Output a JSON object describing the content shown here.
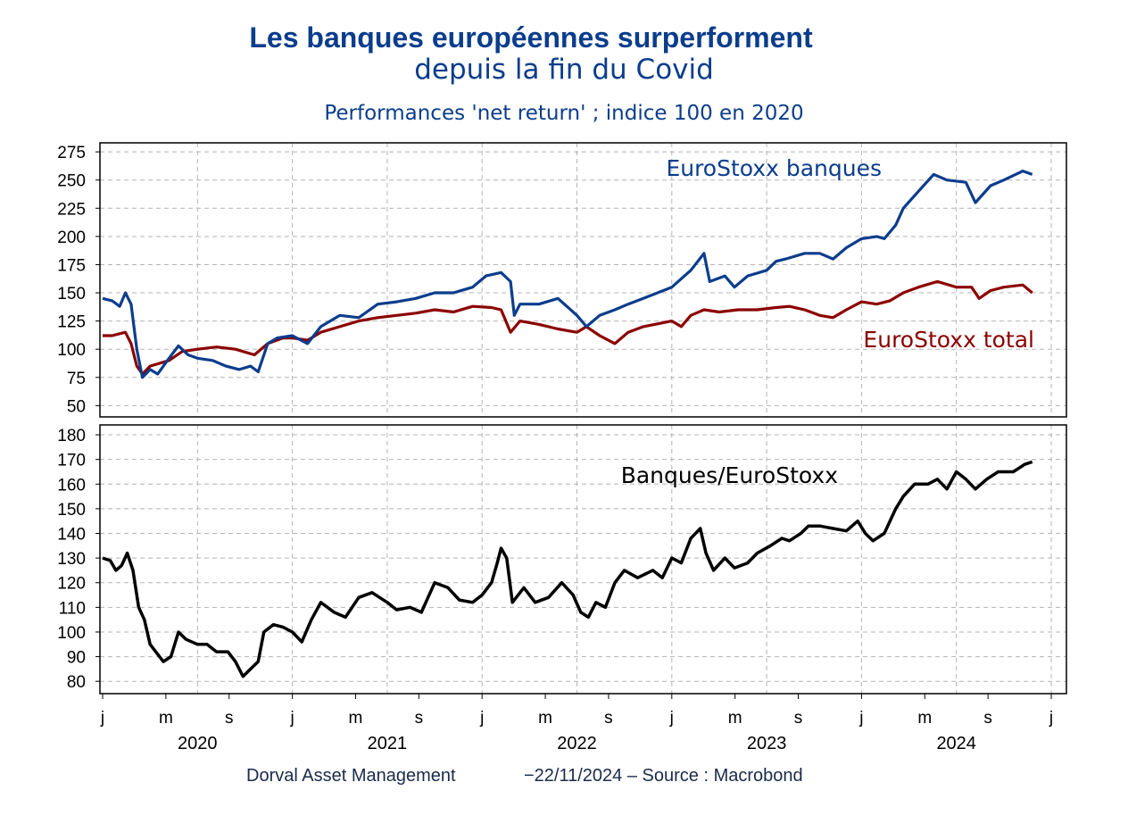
{
  "header": {
    "title_line1": "Les banques européennes surperforment",
    "title_line2": "depuis la fin du Covid",
    "subtitle": "Performances 'net return' ; indice 100 en 2020"
  },
  "footer": {
    "source_left": "Dorval Asset Management",
    "source_right": "−22/11/2024  –  Source : Macrobond"
  },
  "colors": {
    "banks": "#0b3d8c",
    "total": "#8b0000",
    "ratio": "#000000",
    "title": "#0b3d8c"
  },
  "chart_data": [
    {
      "type": "line",
      "panel": "top",
      "ylim": [
        40,
        283
      ],
      "yticks": [
        50,
        75,
        100,
        125,
        150,
        175,
        200,
        225,
        250,
        275
      ],
      "grid": true,
      "xticks": [
        "j",
        "m",
        "s",
        "j",
        "m",
        "s",
        "j",
        "m",
        "s",
        "j",
        "m",
        "s",
        "j",
        "m",
        "s",
        "j"
      ],
      "years": [
        "2020",
        "2021",
        "2022",
        "2023",
        "2024"
      ],
      "series": [
        {
          "name": "EuroStoxx banques",
          "color": "#0b3d8c",
          "points": [
            [
              2020.0,
              145
            ],
            [
              2020.05,
              143
            ],
            [
              2020.09,
              138
            ],
            [
              2020.12,
              150
            ],
            [
              2020.15,
              140
            ],
            [
              2020.18,
              100
            ],
            [
              2020.21,
              75
            ],
            [
              2020.25,
              82
            ],
            [
              2020.29,
              78
            ],
            [
              2020.35,
              92
            ],
            [
              2020.4,
              103
            ],
            [
              2020.45,
              95
            ],
            [
              2020.5,
              92
            ],
            [
              2020.58,
              90
            ],
            [
              2020.65,
              85
            ],
            [
              2020.72,
              82
            ],
            [
              2020.78,
              85
            ],
            [
              2020.82,
              80
            ],
            [
              2020.87,
              105
            ],
            [
              2020.92,
              110
            ],
            [
              2021.0,
              112
            ],
            [
              2021.08,
              105
            ],
            [
              2021.15,
              120
            ],
            [
              2021.25,
              130
            ],
            [
              2021.35,
              128
            ],
            [
              2021.45,
              140
            ],
            [
              2021.55,
              142
            ],
            [
              2021.65,
              145
            ],
            [
              2021.75,
              150
            ],
            [
              2021.85,
              150
            ],
            [
              2021.95,
              155
            ],
            [
              2022.02,
              165
            ],
            [
              2022.1,
              168
            ],
            [
              2022.15,
              160
            ],
            [
              2022.17,
              130
            ],
            [
              2022.2,
              140
            ],
            [
              2022.3,
              140
            ],
            [
              2022.4,
              145
            ],
            [
              2022.5,
              130
            ],
            [
              2022.55,
              120
            ],
            [
              2022.62,
              130
            ],
            [
              2022.7,
              135
            ],
            [
              2022.77,
              140
            ],
            [
              2022.85,
              145
            ],
            [
              2023.0,
              155
            ],
            [
              2023.1,
              170
            ],
            [
              2023.17,
              185
            ],
            [
              2023.2,
              160
            ],
            [
              2023.28,
              165
            ],
            [
              2023.33,
              155
            ],
            [
              2023.4,
              165
            ],
            [
              2023.5,
              170
            ],
            [
              2023.55,
              178
            ],
            [
              2023.6,
              180
            ],
            [
              2023.7,
              185
            ],
            [
              2023.78,
              185
            ],
            [
              2023.85,
              180
            ],
            [
              2023.92,
              190
            ],
            [
              2024.0,
              198
            ],
            [
              2024.08,
              200
            ],
            [
              2024.12,
              198
            ],
            [
              2024.18,
              210
            ],
            [
              2024.22,
              225
            ],
            [
              2024.3,
              240
            ],
            [
              2024.38,
              255
            ],
            [
              2024.45,
              250
            ],
            [
              2024.55,
              248
            ],
            [
              2024.6,
              230
            ],
            [
              2024.68,
              245
            ],
            [
              2024.75,
              250
            ],
            [
              2024.85,
              258
            ],
            [
              2024.9,
              255
            ]
          ]
        },
        {
          "name": "EuroStoxx total",
          "color": "#8b0000",
          "points": [
            [
              2020.0,
              112
            ],
            [
              2020.05,
              112
            ],
            [
              2020.12,
              115
            ],
            [
              2020.15,
              105
            ],
            [
              2020.18,
              85
            ],
            [
              2020.21,
              78
            ],
            [
              2020.25,
              85
            ],
            [
              2020.35,
              90
            ],
            [
              2020.42,
              98
            ],
            [
              2020.5,
              100
            ],
            [
              2020.6,
              102
            ],
            [
              2020.7,
              100
            ],
            [
              2020.8,
              95
            ],
            [
              2020.87,
              105
            ],
            [
              2020.95,
              110
            ],
            [
              2021.0,
              110
            ],
            [
              2021.08,
              108
            ],
            [
              2021.15,
              115
            ],
            [
              2021.25,
              120
            ],
            [
              2021.35,
              125
            ],
            [
              2021.45,
              128
            ],
            [
              2021.55,
              130
            ],
            [
              2021.65,
              132
            ],
            [
              2021.75,
              135
            ],
            [
              2021.85,
              133
            ],
            [
              2021.95,
              138
            ],
            [
              2022.05,
              137
            ],
            [
              2022.1,
              135
            ],
            [
              2022.15,
              115
            ],
            [
              2022.2,
              125
            ],
            [
              2022.3,
              122
            ],
            [
              2022.4,
              118
            ],
            [
              2022.5,
              115
            ],
            [
              2022.55,
              120
            ],
            [
              2022.62,
              112
            ],
            [
              2022.7,
              105
            ],
            [
              2022.77,
              115
            ],
            [
              2022.85,
              120
            ],
            [
              2023.0,
              125
            ],
            [
              2023.05,
              120
            ],
            [
              2023.1,
              130
            ],
            [
              2023.17,
              135
            ],
            [
              2023.25,
              133
            ],
            [
              2023.35,
              135
            ],
            [
              2023.45,
              135
            ],
            [
              2023.55,
              137
            ],
            [
              2023.62,
              138
            ],
            [
              2023.7,
              135
            ],
            [
              2023.78,
              130
            ],
            [
              2023.85,
              128
            ],
            [
              2023.92,
              135
            ],
            [
              2024.0,
              142
            ],
            [
              2024.08,
              140
            ],
            [
              2024.15,
              143
            ],
            [
              2024.22,
              150
            ],
            [
              2024.3,
              155
            ],
            [
              2024.4,
              160
            ],
            [
              2024.5,
              155
            ],
            [
              2024.58,
              155
            ],
            [
              2024.62,
              145
            ],
            [
              2024.68,
              152
            ],
            [
              2024.75,
              155
            ],
            [
              2024.85,
              157
            ],
            [
              2024.9,
              150
            ]
          ]
        }
      ]
    },
    {
      "type": "line",
      "panel": "bottom",
      "ylim": [
        75,
        184
      ],
      "yticks": [
        80,
        90,
        100,
        110,
        120,
        130,
        140,
        150,
        160,
        170,
        180
      ],
      "grid": true,
      "series": [
        {
          "name": "Banques/EuroStoxx",
          "color": "#000000",
          "points": [
            [
              2020.0,
              130
            ],
            [
              2020.04,
              129
            ],
            [
              2020.07,
              125
            ],
            [
              2020.1,
              127
            ],
            [
              2020.13,
              132
            ],
            [
              2020.16,
              125
            ],
            [
              2020.19,
              110
            ],
            [
              2020.22,
              105
            ],
            [
              2020.25,
              95
            ],
            [
              2020.28,
              92
            ],
            [
              2020.32,
              88
            ],
            [
              2020.36,
              90
            ],
            [
              2020.4,
              100
            ],
            [
              2020.44,
              97
            ],
            [
              2020.5,
              95
            ],
            [
              2020.55,
              95
            ],
            [
              2020.6,
              92
            ],
            [
              2020.66,
              92
            ],
            [
              2020.7,
              88
            ],
            [
              2020.74,
              82
            ],
            [
              2020.78,
              85
            ],
            [
              2020.82,
              88
            ],
            [
              2020.85,
              100
            ],
            [
              2020.9,
              103
            ],
            [
              2020.95,
              102
            ],
            [
              2021.0,
              100
            ],
            [
              2021.05,
              96
            ],
            [
              2021.1,
              105
            ],
            [
              2021.15,
              112
            ],
            [
              2021.22,
              108
            ],
            [
              2021.28,
              106
            ],
            [
              2021.35,
              114
            ],
            [
              2021.42,
              116
            ],
            [
              2021.5,
              112
            ],
            [
              2021.55,
              109
            ],
            [
              2021.62,
              110
            ],
            [
              2021.68,
              108
            ],
            [
              2021.75,
              120
            ],
            [
              2021.82,
              118
            ],
            [
              2021.88,
              113
            ],
            [
              2021.95,
              112
            ],
            [
              2022.0,
              115
            ],
            [
              2022.05,
              120
            ],
            [
              2022.08,
              128
            ],
            [
              2022.1,
              134
            ],
            [
              2022.13,
              130
            ],
            [
              2022.16,
              112
            ],
            [
              2022.22,
              118
            ],
            [
              2022.28,
              112
            ],
            [
              2022.35,
              114
            ],
            [
              2022.42,
              120
            ],
            [
              2022.48,
              115
            ],
            [
              2022.52,
              108
            ],
            [
              2022.56,
              106
            ],
            [
              2022.6,
              112
            ],
            [
              2022.65,
              110
            ],
            [
              2022.7,
              120
            ],
            [
              2022.75,
              125
            ],
            [
              2022.82,
              122
            ],
            [
              2022.9,
              125
            ],
            [
              2022.95,
              122
            ],
            [
              2023.0,
              130
            ],
            [
              2023.05,
              128
            ],
            [
              2023.1,
              138
            ],
            [
              2023.15,
              142
            ],
            [
              2023.18,
              132
            ],
            [
              2023.22,
              125
            ],
            [
              2023.28,
              130
            ],
            [
              2023.33,
              126
            ],
            [
              2023.4,
              128
            ],
            [
              2023.45,
              132
            ],
            [
              2023.52,
              135
            ],
            [
              2023.58,
              138
            ],
            [
              2023.62,
              137
            ],
            [
              2023.68,
              140
            ],
            [
              2023.72,
              143
            ],
            [
              2023.78,
              143
            ],
            [
              2023.85,
              142
            ],
            [
              2023.92,
              141
            ],
            [
              2023.98,
              145
            ],
            [
              2024.02,
              140
            ],
            [
              2024.06,
              137
            ],
            [
              2024.12,
              140
            ],
            [
              2024.18,
              150
            ],
            [
              2024.22,
              155
            ],
            [
              2024.28,
              160
            ],
            [
              2024.35,
              160
            ],
            [
              2024.4,
              162
            ],
            [
              2024.45,
              158
            ],
            [
              2024.5,
              165
            ],
            [
              2024.55,
              162
            ],
            [
              2024.6,
              158
            ],
            [
              2024.66,
              162
            ],
            [
              2024.72,
              165
            ],
            [
              2024.8,
              165
            ],
            [
              2024.86,
              168
            ],
            [
              2024.9,
              169
            ]
          ]
        }
      ]
    }
  ]
}
